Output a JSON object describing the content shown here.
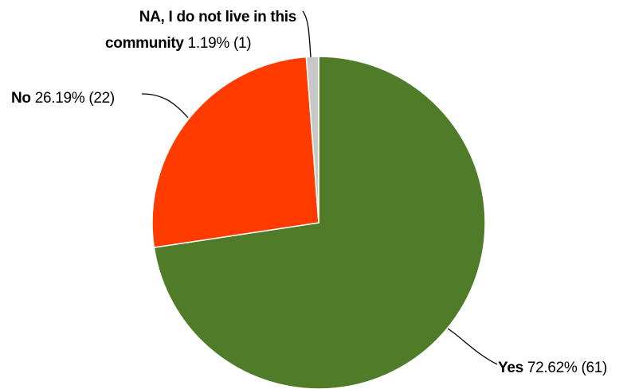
{
  "chart_data": {
    "type": "pie",
    "slices": [
      {
        "label": "Yes",
        "percent": 72.62,
        "count": 61,
        "percent_text": "72.62%",
        "count_text": "(61)",
        "color": "#507c29"
      },
      {
        "label": "No",
        "percent": 26.19,
        "count": 22,
        "percent_text": "26.19%",
        "count_text": "(22)",
        "color": "#ff3b00"
      },
      {
        "label_lines": [
          "NA, I do not live in this",
          "community"
        ],
        "percent": 1.19,
        "count": 1,
        "percent_text": "1.19%",
        "count_text": "(1)",
        "color": "#c8c8c8"
      }
    ],
    "start": "12 o'clock",
    "direction": "clockwise",
    "slice_border_color": "#ffffff"
  }
}
